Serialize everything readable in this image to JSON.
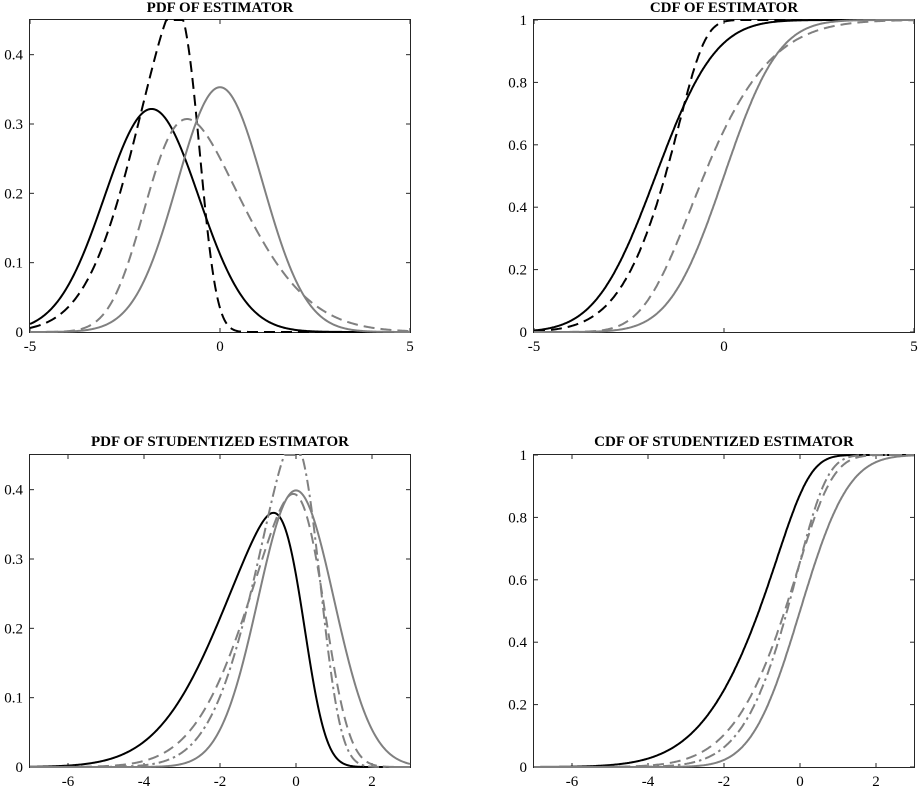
{
  "figure": {
    "description_colors": {
      "black": "#000000",
      "gray": "#808080"
    }
  },
  "chart_data": [
    {
      "type": "line",
      "title": "PDF OF ESTIMATOR",
      "xlabel": "",
      "ylabel": "",
      "xlim": [
        -5,
        5
      ],
      "ylim": [
        0,
        0.45
      ],
      "xticks": [
        -5,
        0,
        5
      ],
      "xtick_labels": [
        "-5",
        "0",
        "5"
      ],
      "yticks": [
        0,
        0.1,
        0.2,
        0.3,
        0.4
      ],
      "ytick_labels": [
        "0",
        "0.1",
        "0.2",
        "0.3",
        "0.4"
      ],
      "grid": false,
      "series": [
        {
          "name": "black-solid",
          "color": "#000000",
          "dash": "solid",
          "kind": "pdf",
          "dist": "normal",
          "mean": -1.8,
          "sd": 1.24
        },
        {
          "name": "black-dashed",
          "color": "#000000",
          "dash": "dashed",
          "kind": "pdf",
          "dist": "skewnormal",
          "loc": -0.55,
          "scale": 1.48,
          "alpha": -4
        },
        {
          "name": "gray-dashed",
          "color": "#808080",
          "dash": "dashed",
          "kind": "pdf",
          "dist": "skewnormal",
          "loc": -1.9,
          "scale": 2.05,
          "alpha": 2.5
        },
        {
          "name": "gray-solid",
          "color": "#808080",
          "dash": "solid",
          "kind": "pdf",
          "dist": "normal",
          "mean": 0,
          "sd": 1.13
        }
      ]
    },
    {
      "type": "line",
      "title": "CDF OF ESTIMATOR",
      "xlabel": "",
      "ylabel": "",
      "xlim": [
        -5,
        5
      ],
      "ylim": [
        0,
        1
      ],
      "xticks": [
        -5,
        0,
        5
      ],
      "xtick_labels": [
        "-5",
        "0",
        "5"
      ],
      "yticks": [
        0,
        0.2,
        0.4,
        0.6,
        0.8,
        1
      ],
      "ytick_labels": [
        "0",
        "0.2",
        "0.4",
        "0.6",
        "0.8",
        "1"
      ],
      "grid": false,
      "series": [
        {
          "name": "black-solid",
          "color": "#000000",
          "dash": "solid",
          "kind": "cdf",
          "dist": "normal",
          "mean": -1.8,
          "sd": 1.24
        },
        {
          "name": "black-dashed",
          "color": "#000000",
          "dash": "dashed",
          "kind": "cdf",
          "dist": "skewnormal",
          "loc": -0.55,
          "scale": 1.48,
          "alpha": -4
        },
        {
          "name": "gray-dashed",
          "color": "#808080",
          "dash": "dashed",
          "kind": "cdf",
          "dist": "skewnormal",
          "loc": -1.9,
          "scale": 2.05,
          "alpha": 2.5
        },
        {
          "name": "gray-solid",
          "color": "#808080",
          "dash": "solid",
          "kind": "cdf",
          "dist": "normal",
          "mean": 0,
          "sd": 1.13
        }
      ]
    },
    {
      "type": "line",
      "title": "PDF OF STUDENTIZED ESTIMATOR",
      "xlabel": "",
      "ylabel": "",
      "xlim": [
        -7,
        3
      ],
      "ylim": [
        0,
        0.45
      ],
      "xticks": [
        -6,
        -4,
        -2,
        0,
        2
      ],
      "xtick_labels": [
        "-6",
        "-4",
        "-2",
        "0",
        "2"
      ],
      "yticks": [
        0,
        0.1,
        0.2,
        0.3,
        0.4
      ],
      "ytick_labels": [
        "0",
        "0.1",
        "0.2",
        "0.3",
        "0.4"
      ],
      "grid": false,
      "series": [
        {
          "name": "black-solid",
          "color": "#000000",
          "dash": "solid",
          "kind": "pdf",
          "dist": "skewnormal",
          "loc": 0.2,
          "scale": 1.9,
          "alpha": -4
        },
        {
          "name": "gray-dashed",
          "color": "#808080",
          "dash": "dashed",
          "kind": "pdf",
          "dist": "skewnormal",
          "loc": 0.72,
          "scale": 1.67,
          "alpha": -3
        },
        {
          "name": "gray-dashdot",
          "color": "#808080",
          "dash": "dashdot",
          "kind": "pdf",
          "dist": "skewnormal",
          "loc": 0.6,
          "scale": 1.4,
          "alpha": -3
        },
        {
          "name": "gray-solid",
          "color": "#808080",
          "dash": "solid",
          "kind": "pdf",
          "dist": "normal",
          "mean": 0,
          "sd": 1.0
        }
      ]
    },
    {
      "type": "line",
      "title": "CDF OF STUDENTIZED ESTIMATOR",
      "xlabel": "",
      "ylabel": "",
      "xlim": [
        -7,
        3
      ],
      "ylim": [
        0,
        1
      ],
      "xticks": [
        -6,
        -4,
        -2,
        0,
        2
      ],
      "xtick_labels": [
        "-6",
        "-4",
        "-2",
        "0",
        "2"
      ],
      "yticks": [
        0,
        0.2,
        0.4,
        0.6,
        0.8,
        1
      ],
      "ytick_labels": [
        "0",
        "0.2",
        "0.4",
        "0.6",
        "0.8",
        "1"
      ],
      "grid": false,
      "series": [
        {
          "name": "black-solid",
          "color": "#000000",
          "dash": "solid",
          "kind": "cdf",
          "dist": "skewnormal",
          "loc": 0.2,
          "scale": 1.9,
          "alpha": -4
        },
        {
          "name": "gray-dashed",
          "color": "#808080",
          "dash": "dashed",
          "kind": "cdf",
          "dist": "skewnormal",
          "loc": 0.72,
          "scale": 1.67,
          "alpha": -3
        },
        {
          "name": "gray-dashdot",
          "color": "#808080",
          "dash": "dashdot",
          "kind": "cdf",
          "dist": "skewnormal",
          "loc": 0.6,
          "scale": 1.4,
          "alpha": -3
        },
        {
          "name": "gray-solid",
          "color": "#808080",
          "dash": "solid",
          "kind": "cdf",
          "dist": "normal",
          "mean": 0,
          "sd": 1.0
        }
      ]
    }
  ]
}
